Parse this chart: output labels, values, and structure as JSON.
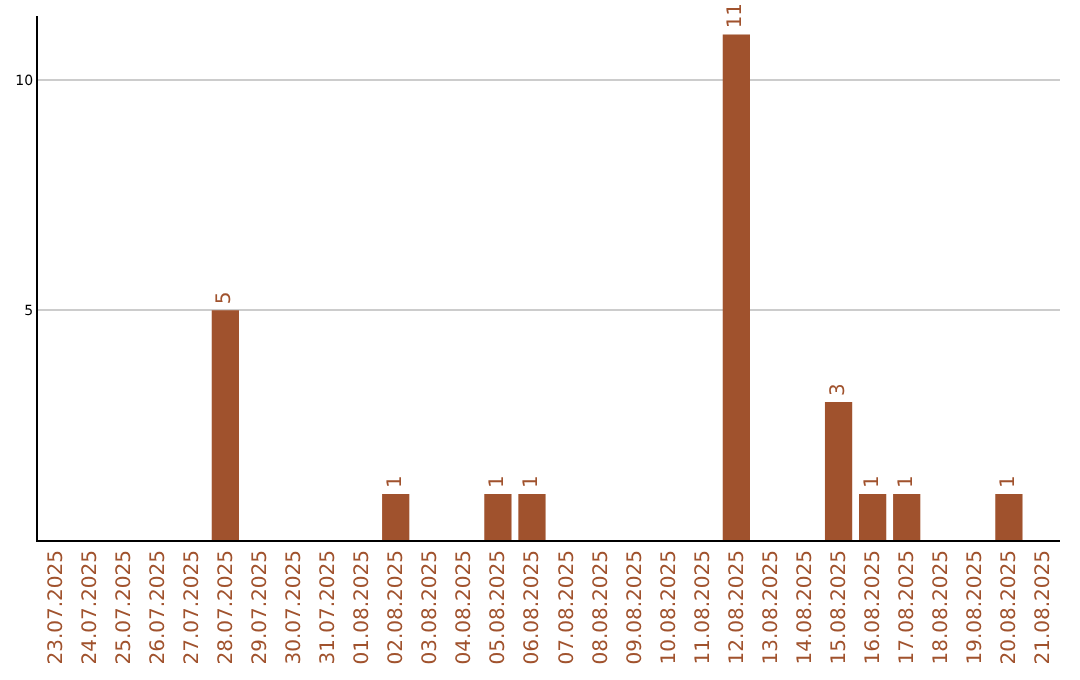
{
  "chart_data": {
    "type": "bar",
    "categories": [
      "23.07.2025",
      "24.07.2025",
      "25.07.2025",
      "26.07.2025",
      "27.07.2025",
      "28.07.2025",
      "29.07.2025",
      "30.07.2025",
      "31.07.2025",
      "01.08.2025",
      "02.08.2025",
      "03.08.2025",
      "04.08.2025",
      "05.08.2025",
      "06.08.2025",
      "07.08.2025",
      "08.08.2025",
      "09.08.2025",
      "10.08.2025",
      "11.08.2025",
      "12.08.2025",
      "13.08.2025",
      "14.08.2025",
      "15.08.2025",
      "16.08.2025",
      "17.08.2025",
      "18.08.2025",
      "19.08.2025",
      "20.08.2025",
      "21.08.2025"
    ],
    "values": [
      0,
      0,
      0,
      0,
      0,
      5,
      0,
      0,
      0,
      0,
      1,
      0,
      0,
      1,
      1,
      0,
      0,
      0,
      0,
      0,
      11,
      0,
      0,
      3,
      1,
      1,
      0,
      0,
      1,
      0
    ],
    "value_labels": [
      null,
      null,
      null,
      null,
      null,
      "5",
      null,
      null,
      null,
      null,
      "1",
      null,
      null,
      "1",
      "1",
      null,
      null,
      null,
      null,
      null,
      "11",
      null,
      null,
      "3",
      "1",
      "1",
      null,
      null,
      "1",
      null
    ],
    "color": "#a0522d",
    "ylim": [
      0,
      11.4
    ],
    "yticks": [
      5,
      10
    ],
    "grid": "y",
    "legend": false
  }
}
